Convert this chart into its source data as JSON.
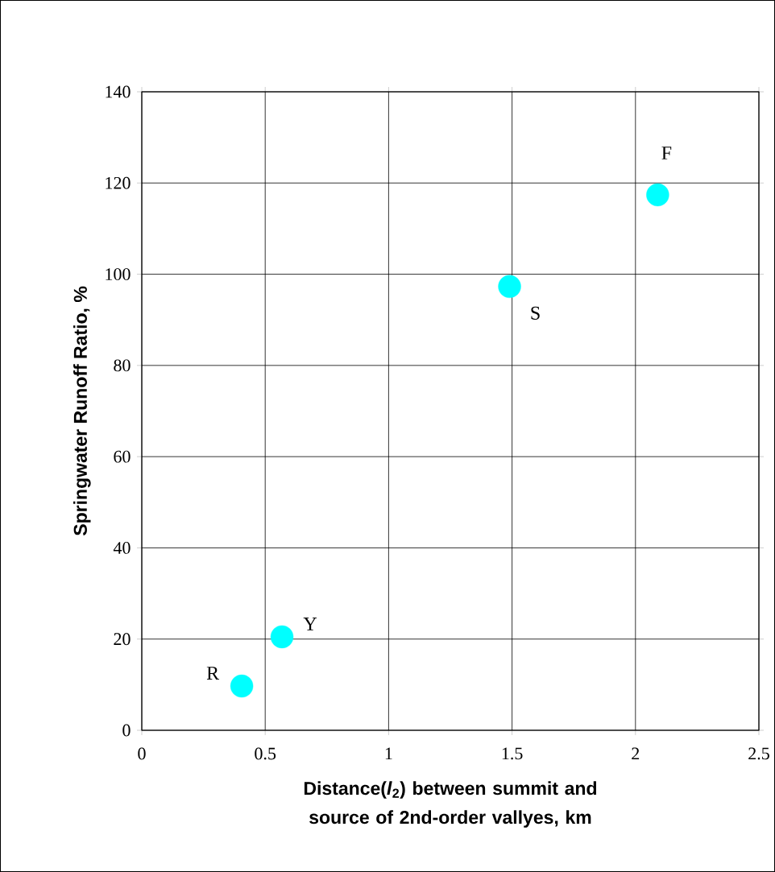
{
  "chart_data": {
    "type": "scatter",
    "xlabel": "Distance(*l*$_{2}$) between summit and source of 2nd-order vallyes, km",
    "ylabel": "Springwater Runoff Ratio, %",
    "x": [
      0.405,
      0.568,
      1.49,
      2.09
    ],
    "series": [
      {
        "color": "#00ffff",
        "values": [
          9.7,
          20.5,
          97.3,
          117.4
        ]
      }
    ],
    "xlim": [
      0,
      2.5
    ],
    "xticks": [
      0,
      0.5,
      1,
      1.5,
      2,
      2.5
    ],
    "ylim": [
      0,
      140
    ],
    "yticks": [
      0,
      20,
      40,
      60,
      80,
      100,
      120,
      140
    ],
    "grid": true,
    "marker": "circle",
    "annotations": [
      {
        "text": "R",
        "x": 0.405,
        "y": 9.7
      },
      {
        "text": "Y",
        "x": 0.568,
        "y": 20.5
      },
      {
        "text": "S",
        "x": 1.49,
        "y": 97.3
      },
      {
        "text": "F",
        "x": 2.09,
        "y": 117.4
      }
    ]
  }
}
